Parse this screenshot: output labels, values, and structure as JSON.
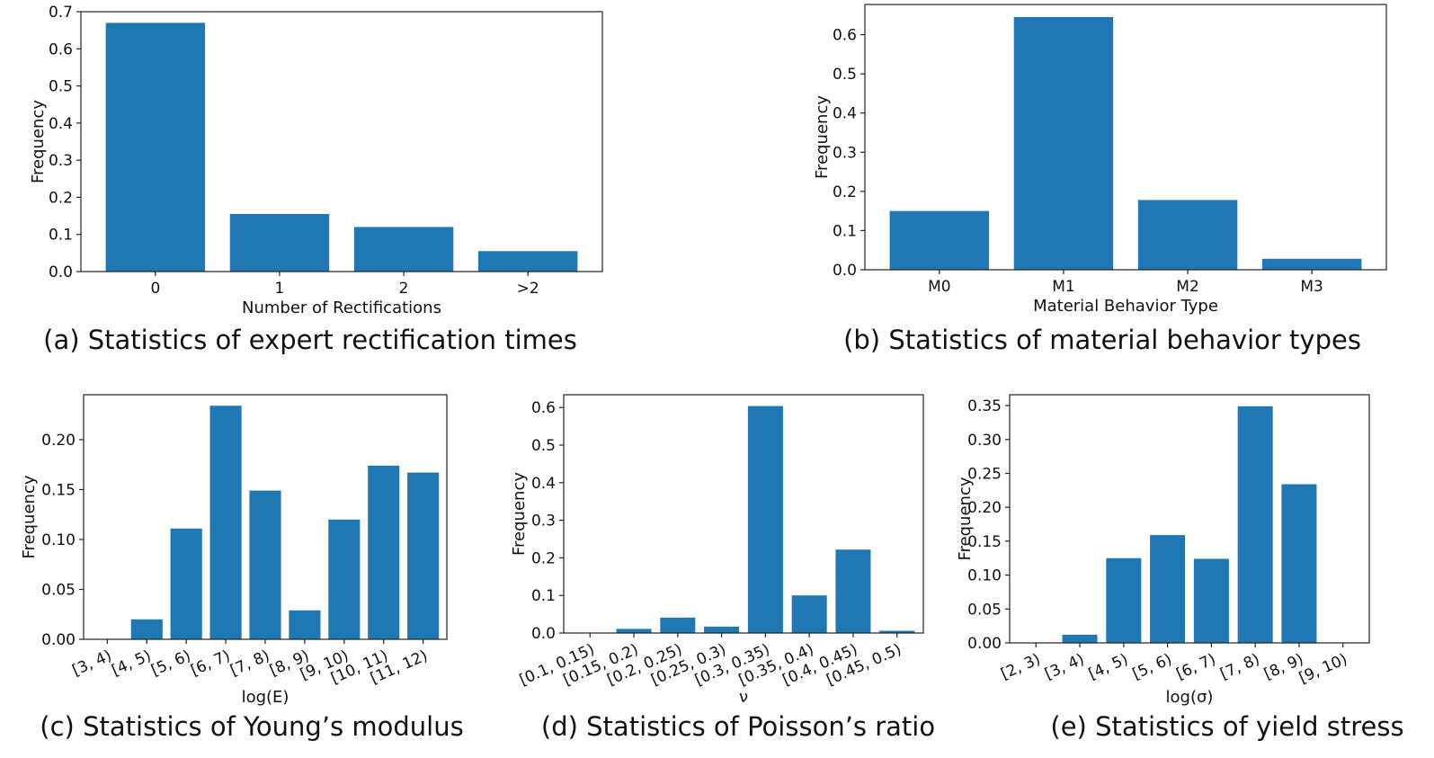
{
  "chart_data": [
    {
      "id": "a",
      "type": "bar",
      "caption": "(a) Statistics of expert rectification times",
      "xlabel": "Number of Rectifications",
      "ylabel": "Frequency",
      "categories": [
        "0",
        "1",
        "2",
        ">2"
      ],
      "values": [
        0.67,
        0.155,
        0.12,
        0.055
      ],
      "ylim": [
        0,
        0.7
      ],
      "yticks": [
        "0.0",
        "0.1",
        "0.2",
        "0.3",
        "0.4",
        "0.5",
        "0.6",
        "0.7"
      ],
      "color": "#1f77b4"
    },
    {
      "id": "b",
      "type": "bar",
      "caption": "(b) Statistics of material behavior types",
      "xlabel": "Material Behavior Type",
      "ylabel": "Frequency",
      "categories": [
        "M0",
        "M1",
        "M2",
        "M3"
      ],
      "values": [
        0.15,
        0.645,
        0.178,
        0.028
      ],
      "ylim": [
        0,
        0.677
      ],
      "yticks": [
        "0.0",
        "0.1",
        "0.2",
        "0.3",
        "0.4",
        "0.5",
        "0.6"
      ],
      "color": "#1f77b4"
    },
    {
      "id": "c",
      "type": "bar",
      "caption": "(c) Statistics of Young’s modulus",
      "xlabel": "log(E)",
      "ylabel": "Frequency",
      "categories": [
        "[3, 4)",
        "[4, 5)",
        "[5, 6)",
        "[6, 7)",
        "[7, 8)",
        "[8, 9)",
        "[9, 10)",
        "[10, 11)",
        "[11, 12)"
      ],
      "values": [
        0.0,
        0.02,
        0.111,
        0.234,
        0.149,
        0.029,
        0.12,
        0.174,
        0.167
      ],
      "ylim": [
        0,
        0.245
      ],
      "yticks": [
        "0.00",
        "0.05",
        "0.10",
        "0.15",
        "0.20"
      ],
      "color": "#1f77b4"
    },
    {
      "id": "d",
      "type": "bar",
      "caption": "(d) Statistics of Poisson’s ratio",
      "xlabel": "ν",
      "ylabel": "Frequency",
      "categories": [
        "[0.1, 0.15)",
        "[0.15, 0.2)",
        "[0.2, 0.25)",
        "[0.25, 0.3)",
        "[0.3, 0.35)",
        "[0.35, 0.4)",
        "[0.4, 0.45)",
        "[0.45, 0.5)"
      ],
      "values": [
        0.0,
        0.011,
        0.041,
        0.017,
        0.604,
        0.1,
        0.222,
        0.006
      ],
      "ylim": [
        0,
        0.634
      ],
      "yticks": [
        "0.0",
        "0.1",
        "0.2",
        "0.3",
        "0.4",
        "0.5",
        "0.6"
      ],
      "color": "#1f77b4"
    },
    {
      "id": "e",
      "type": "bar",
      "caption": "(e) Statistics of yield stress",
      "xlabel": "log(σ)",
      "ylabel": "Frequency",
      "categories": [
        "[2, 3)",
        "[3, 4)",
        "[4, 5)",
        "[5, 6)",
        "[6, 7)",
        "[7, 8)",
        "[8, 9)",
        "[9, 10)"
      ],
      "values": [
        0.0,
        0.012,
        0.125,
        0.159,
        0.124,
        0.349,
        0.234,
        0.0
      ],
      "ylim": [
        0,
        0.366
      ],
      "yticks": [
        "0.00",
        "0.05",
        "0.10",
        "0.15",
        "0.20",
        "0.25",
        "0.30",
        "0.35"
      ],
      "color": "#1f77b4"
    }
  ]
}
